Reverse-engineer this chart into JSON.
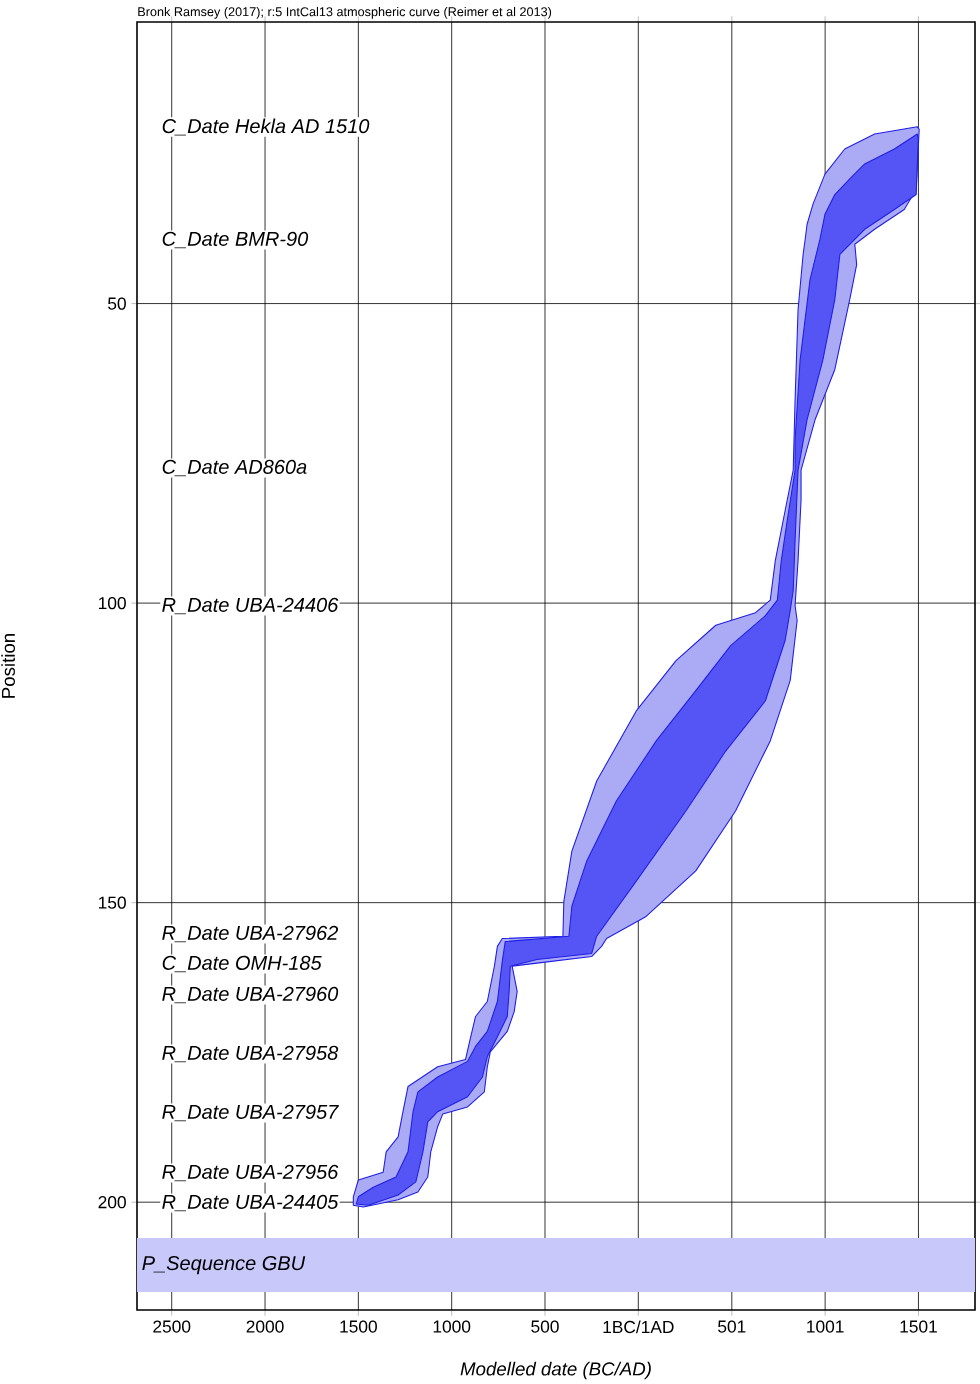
{
  "chart_data": {
    "type": "area",
    "title": "Bronk Ramsey (2017); r:5 IntCal13 atmospheric curve (Reimer et al 2013)",
    "xlabel": "Modelled date (BC/AD)",
    "ylabel": "Position",
    "xlim": [
      -2686,
      1804
    ],
    "ylim": [
      218,
      3
    ],
    "xticks": [
      {
        "value": -2500,
        "label": "2500"
      },
      {
        "value": -2000,
        "label": "2000"
      },
      {
        "value": -1500,
        "label": "1500"
      },
      {
        "value": -1000,
        "label": "1000"
      },
      {
        "value": -500,
        "label": "500"
      },
      {
        "value": 0,
        "label": "1BC/1AD"
      },
      501,
      1001,
      1501
    ],
    "yticks": [
      50,
      100,
      150,
      200
    ],
    "grid": true,
    "series": [
      {
        "color": "#aaaaf5",
        "x": [
          1495,
          1266,
          1106,
          1000,
          936,
          904,
          894,
          883,
          856,
          840,
          830,
          787,
          734,
          707,
          628,
          415,
          202,
          -11,
          -223,
          -356,
          -399,
          -404,
          -729,
          -755,
          -771,
          -809,
          -872,
          -904,
          -926,
          -1075,
          -1234,
          -1261,
          -1287,
          -1351,
          -1367,
          -1500,
          -1527,
          -1527,
          -1473,
          -1287,
          -1181,
          -1128,
          -1112,
          -1075,
          -1048,
          -915,
          -825,
          -809,
          -793,
          -702,
          -665,
          -649,
          -676,
          -543,
          -250,
          -197,
          -170,
          42,
          308,
          521,
          707,
          814,
          851,
          840,
          856,
          872,
          872,
          947,
          1053,
          1133,
          1170,
          1160,
          1266,
          1425,
          1489,
          1505
        ],
        "values": [
          20.5,
          21.7,
          24.2,
          28.4,
          33.4,
          36.8,
          39.3,
          41.8,
          51.0,
          66.1,
          77.8,
          84.5,
          92.9,
          99.5,
          101.6,
          103.7,
          109.6,
          118.0,
          129.7,
          141.4,
          149.8,
          155.6,
          156.0,
          157.3,
          160.6,
          166.5,
          169.0,
          173.2,
          176.2,
          177.4,
          180.7,
          184.9,
          189.1,
          191.6,
          195.0,
          196.3,
          199.1,
          200.5,
          200.8,
          199.6,
          198.3,
          195.8,
          191.6,
          187.4,
          185.3,
          184.1,
          181.6,
          177.4,
          174.9,
          171.5,
          168.2,
          164.8,
          160.6,
          160.1,
          159.0,
          157.3,
          156.0,
          152.3,
          144.7,
          134.7,
          123.0,
          112.9,
          102.9,
          100.4,
          92.9,
          82.8,
          77.8,
          69.4,
          61.0,
          49.3,
          43.5,
          40.1,
          37.6,
          34.3,
          30.9,
          20.9
        ]
      },
      {
        "color": "#5555f5",
        "x": [
          1495,
          1372,
          1213,
          1133,
          1053,
          1000,
          973,
          920,
          867,
          840,
          840,
          798,
          766,
          745,
          681,
          495,
          308,
          96,
          -117,
          -277,
          -356,
          -372,
          -713,
          -729,
          -755,
          -809,
          -872,
          -915,
          -1075,
          -1181,
          -1207,
          -1234,
          -1298,
          -1420,
          -1500,
          -1511,
          -1447,
          -1287,
          -1192,
          -1154,
          -1128,
          -1075,
          -915,
          -835,
          -809,
          -755,
          -702,
          -692,
          -686,
          -543,
          -250,
          -223,
          -11,
          255,
          468,
          681,
          787,
          814,
          830,
          840,
          856,
          904,
          989,
          1053,
          1080,
          1213,
          1372,
          1489,
          1500
        ],
        "values": [
          21.7,
          24.2,
          26.7,
          29.2,
          31.8,
          35.1,
          39.3,
          46.0,
          59.4,
          72.8,
          77.8,
          86.2,
          92.9,
          99.5,
          102.1,
          107.1,
          114.6,
          123.0,
          133.0,
          143.1,
          150.6,
          155.6,
          156.5,
          159.8,
          166.5,
          171.5,
          174.0,
          176.5,
          179.1,
          181.6,
          184.9,
          191.6,
          195.8,
          197.5,
          199.1,
          200.3,
          200.5,
          198.8,
          196.6,
          191.6,
          186.6,
          184.9,
          182.4,
          179.1,
          175.7,
          172.4,
          169.0,
          164.8,
          160.6,
          159.5,
          158.5,
          155.6,
          146.4,
          134.7,
          124.7,
          116.3,
          106.2,
          101.2,
          97.9,
          89.5,
          77.8,
          69.4,
          59.4,
          49.3,
          41.8,
          37.6,
          34.3,
          31.8,
          22.5
        ]
      }
    ],
    "bands": [
      {
        "axis": "y",
        "from": 206.0,
        "to": 215.0,
        "label": "P_Sequence GBU",
        "color": "#c8c8fa"
      }
    ],
    "annotations": [
      "C_Date Hekla AD 1510",
      "C_Date BMR-90",
      "C_Date AD860a",
      "R_Date UBA-24406",
      "R_Date UBA-27962",
      "C_Date OMH-185",
      "R_Date UBA-27960",
      "R_Date UBA-27958",
      "R_Date UBA-27957",
      "R_Date UBA-27956",
      "R_Date UBA-24405"
    ]
  }
}
